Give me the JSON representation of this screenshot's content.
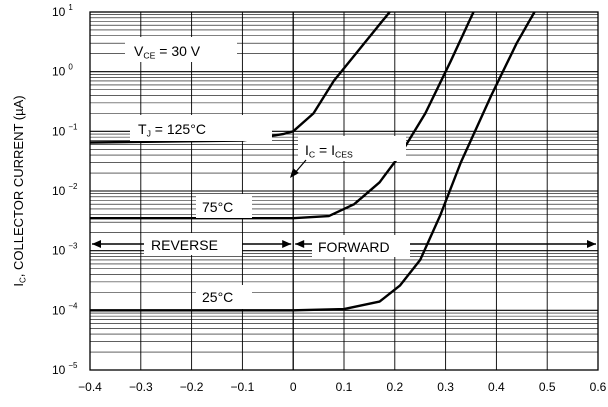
{
  "chart_data": {
    "type": "line",
    "ylabel": "I C, COLLECTOR CURRENT (µA)",
    "ylabel_parts": {
      "main": "I",
      "sub": "C",
      "rest": ", COLLECTOR CURRENT (µA)"
    },
    "y_scale": "log",
    "xlim": [
      -0.4,
      0.6
    ],
    "ylim_exp": [
      -5,
      1
    ],
    "x_ticks": [
      "−0.4",
      "−0.3",
      "−0.2",
      "−0.1",
      "0",
      "0.1",
      "0.2",
      "0.3",
      "0.4",
      "0.5",
      "0.6"
    ],
    "y_ticks": [
      {
        "exp": 1,
        "base": "10",
        "sup": "1"
      },
      {
        "exp": 0,
        "base": "10",
        "sup": "0"
      },
      {
        "exp": -1,
        "base": "10",
        "sup": "−1"
      },
      {
        "exp": -2,
        "base": "10",
        "sup": "−2"
      },
      {
        "exp": -3,
        "base": "10",
        "sup": "−3"
      },
      {
        "exp": -4,
        "base": "10",
        "sup": "−4"
      },
      {
        "exp": -5,
        "base": "10",
        "sup": "−5"
      }
    ],
    "grid": true,
    "series": [
      {
        "name": "T J = 125°C",
        "points": [
          [
            -0.4,
            0.065
          ],
          [
            -0.1,
            0.07
          ],
          [
            -0.02,
            0.09
          ],
          [
            0.0,
            0.1
          ],
          [
            0.04,
            0.2
          ],
          [
            0.08,
            0.7
          ],
          [
            0.14,
            3
          ],
          [
            0.19,
            10
          ]
        ]
      },
      {
        "name": "75°C",
        "points": [
          [
            -0.4,
            0.0035
          ],
          [
            0.0,
            0.0035
          ],
          [
            0.07,
            0.0038
          ],
          [
            0.12,
            0.006
          ],
          [
            0.17,
            0.014
          ],
          [
            0.21,
            0.04
          ],
          [
            0.26,
            0.2
          ],
          [
            0.31,
            1.5
          ],
          [
            0.355,
            10
          ]
        ]
      },
      {
        "name": "25°C",
        "points": [
          [
            -0.4,
            0.0001
          ],
          [
            0.0,
            0.0001
          ],
          [
            0.1,
            0.000105
          ],
          [
            0.17,
            0.00014
          ],
          [
            0.21,
            0.00026
          ],
          [
            0.25,
            0.0007
          ],
          [
            0.29,
            0.004
          ],
          [
            0.33,
            0.03
          ],
          [
            0.39,
            0.4
          ],
          [
            0.44,
            3
          ],
          [
            0.475,
            10
          ]
        ]
      }
    ],
    "annotations": {
      "vce": {
        "main": "V",
        "sub": "CE",
        "rest": " = 30 V"
      },
      "tj": {
        "main": "T",
        "sub": "J",
        "rest": " = 125°C"
      },
      "ic_ices": {
        "main1": "I",
        "sub1": "C",
        "mid": " = I",
        "sub2": "CES"
      },
      "t75": "75°C",
      "t25": "25°C",
      "reverse": "REVERSE",
      "forward": "FORWARD"
    },
    "colors": {
      "curve": "#000000",
      "grid": "#000000",
      "background": "#ffffff"
    }
  }
}
